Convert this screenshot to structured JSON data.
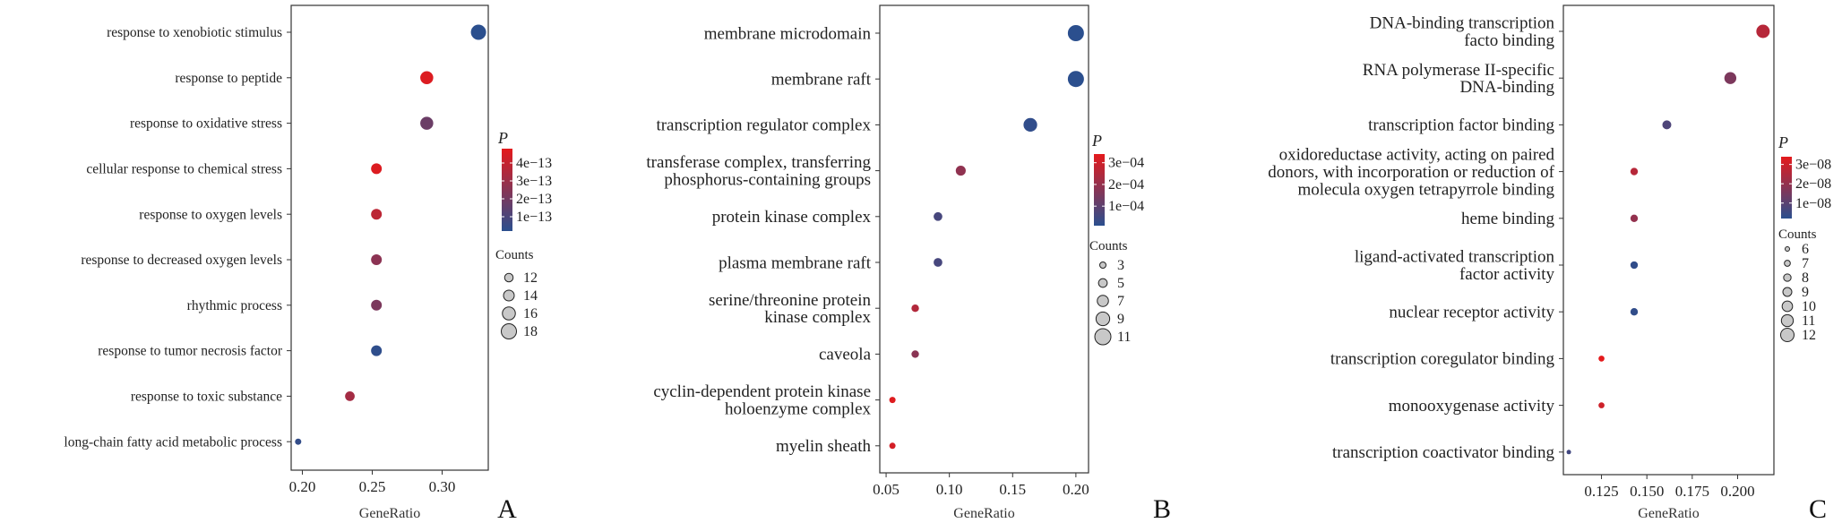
{
  "chart_data": [
    {
      "type": "scatter",
      "panel_label": "A",
      "xlabel": "GeneRatio",
      "xlim": [
        0.192,
        0.333
      ],
      "xticks": [
        0.2,
        0.25,
        0.3
      ],
      "tick_labels": [
        "0.20",
        "0.25",
        "0.30"
      ],
      "color_legend": {
        "title": "P",
        "ticks": [
          "4e−13",
          "3e−13",
          "2e−13",
          "1e−13"
        ],
        "values": [
          4e-13,
          3e-13,
          2e-13,
          1e-13
        ],
        "min": 2e-14,
        "max": 4.8e-13
      },
      "size_legend": {
        "title": "Counts",
        "labels": [
          "12",
          "14",
          "16",
          "18"
        ],
        "values": [
          12,
          14,
          16,
          18
        ],
        "min": 10,
        "max": 18
      },
      "points": [
        {
          "term": [
            "response to xenobiotic stimulus"
          ],
          "x": 0.326,
          "count": 18,
          "p": 2e-14
        },
        {
          "term": [
            "response to peptide"
          ],
          "x": 0.289,
          "count": 16,
          "p": 4.6e-13
        },
        {
          "term": [
            "response to oxidative stress"
          ],
          "x": 0.289,
          "count": 16,
          "p": 1.8e-13
        },
        {
          "term": [
            "cellular response to chemical stress"
          ],
          "x": 0.253,
          "count": 14,
          "p": 4.6e-13
        },
        {
          "term": [
            "response to oxygen levels"
          ],
          "x": 0.253,
          "count": 14,
          "p": 3.8e-13
        },
        {
          "term": [
            "response to decreased oxygen levels"
          ],
          "x": 0.253,
          "count": 14,
          "p": 2.6e-13
        },
        {
          "term": [
            "rhythmic process"
          ],
          "x": 0.253,
          "count": 14,
          "p": 2.2e-13
        },
        {
          "term": [
            "response to tumor necrosis factor"
          ],
          "x": 0.253,
          "count": 14,
          "p": 3e-14
        },
        {
          "term": [
            "response to toxic substance"
          ],
          "x": 0.234,
          "count": 13,
          "p": 3.2e-13
        },
        {
          "term": [
            "long-chain fatty acid metabolic process"
          ],
          "x": 0.197,
          "count": 10,
          "p": 4e-14
        }
      ]
    },
    {
      "type": "scatter",
      "panel_label": "B",
      "xlabel": "GeneRatio",
      "xlim": [
        0.045,
        0.21
      ],
      "xticks": [
        0.05,
        0.1,
        0.15,
        0.2
      ],
      "tick_labels": [
        "0.05",
        "0.10",
        "0.15",
        "0.20"
      ],
      "color_legend": {
        "title": "P",
        "ticks": [
          "3e−04",
          "2e−04",
          "1e−04"
        ],
        "values": [
          0.0003,
          0.0002,
          0.0001
        ],
        "min": 1e-05,
        "max": 0.00034
      },
      "size_legend": {
        "title": "Counts",
        "labels": [
          "3",
          "5",
          "7",
          "9",
          "11"
        ],
        "values": [
          3,
          5,
          7,
          9,
          11
        ],
        "min": 3,
        "max": 11
      },
      "points": [
        {
          "term": [
            "membrane microdomain"
          ],
          "x": 0.2,
          "count": 11,
          "p": 1e-05
        },
        {
          "term": [
            "membrane raft"
          ],
          "x": 0.2,
          "count": 11,
          "p": 1e-05
        },
        {
          "term": [
            "transcription regulator complex"
          ],
          "x": 0.164,
          "count": 9,
          "p": 2e-05
        },
        {
          "term": [
            "transferase complex, transferring",
            "phosphorus-containing groups"
          ],
          "x": 0.109,
          "count": 6,
          "p": 0.00019
        },
        {
          "term": [
            "protein kinase complex"
          ],
          "x": 0.091,
          "count": 5,
          "p": 6e-05
        },
        {
          "term": [
            "plasma membrane raft"
          ],
          "x": 0.091,
          "count": 5,
          "p": 6e-05
        },
        {
          "term": [
            "serine/threonine protein",
            "kinase complex"
          ],
          "x": 0.073,
          "count": 4,
          "p": 0.00025
        },
        {
          "term": [
            "caveola"
          ],
          "x": 0.073,
          "count": 4,
          "p": 0.00018
        },
        {
          "term": [
            "cyclin-dependent protein kinase",
            "holoenzyme complex"
          ],
          "x": 0.055,
          "count": 3,
          "p": 0.00033
        },
        {
          "term": [
            "myelin sheath"
          ],
          "x": 0.055,
          "count": 3,
          "p": 0.00031
        }
      ]
    },
    {
      "type": "scatter",
      "panel_label": "C",
      "xlabel": "GeneRatio",
      "xlim": [
        0.104,
        0.22
      ],
      "xticks": [
        0.125,
        0.15,
        0.175,
        0.2
      ],
      "tick_labels": [
        "0.125",
        "0.150",
        "0.175",
        "0.200"
      ],
      "color_legend": {
        "title": "P",
        "ticks": [
          "3e−08",
          "2e−08",
          "1e−08"
        ],
        "values": [
          3e-08,
          2e-08,
          1e-08
        ],
        "min": 2e-09,
        "max": 3.4e-08
      },
      "size_legend": {
        "title": "Counts",
        "labels": [
          "6",
          "7",
          "8",
          "9",
          "10",
          "11",
          "12"
        ],
        "values": [
          6,
          7,
          8,
          9,
          10,
          11,
          12
        ],
        "min": 6,
        "max": 12
      },
      "points": [
        {
          "term": [
            "DNA-binding transcription",
            "facto binding"
          ],
          "x": 0.214,
          "count": 12,
          "p": 2.6e-08
        },
        {
          "term": [
            "RNA polymerase II-specific",
            "DNA-binding"
          ],
          "x": 0.196,
          "count": 11,
          "p": 1.6e-08
        },
        {
          "term": [
            "transcription factor binding"
          ],
          "x": 0.161,
          "count": 9,
          "p": 8e-09
        },
        {
          "term": [
            "oxidoreductase activity, acting on paired",
            "donors, with incorporation or reduction of",
            "molecula oxygen tetrapyrrole binding"
          ],
          "x": 0.143,
          "count": 8,
          "p": 2.6e-08
        },
        {
          "term": [
            "heme binding"
          ],
          "x": 0.143,
          "count": 8,
          "p": 2e-08
        },
        {
          "term": [
            "ligand-activated transcription",
            "factor activity"
          ],
          "x": 0.143,
          "count": 8,
          "p": 3e-09
        },
        {
          "term": [
            "nuclear receptor activity"
          ],
          "x": 0.143,
          "count": 8,
          "p": 3e-09
        },
        {
          "term": [
            "transcription coregulator binding"
          ],
          "x": 0.125,
          "count": 7,
          "p": 3.4e-08
        },
        {
          "term": [
            "monooxygenase activity"
          ],
          "x": 0.125,
          "count": 7,
          "p": 3e-08
        },
        {
          "term": [
            "transcription coactivator binding"
          ],
          "x": 0.107,
          "count": 6,
          "p": 6e-09
        }
      ]
    }
  ],
  "colors": {
    "high": "#e41a1c",
    "low": "#2b4f8e",
    "axis": "#333333",
    "legend_dot_fill": "#c8c8c8"
  }
}
